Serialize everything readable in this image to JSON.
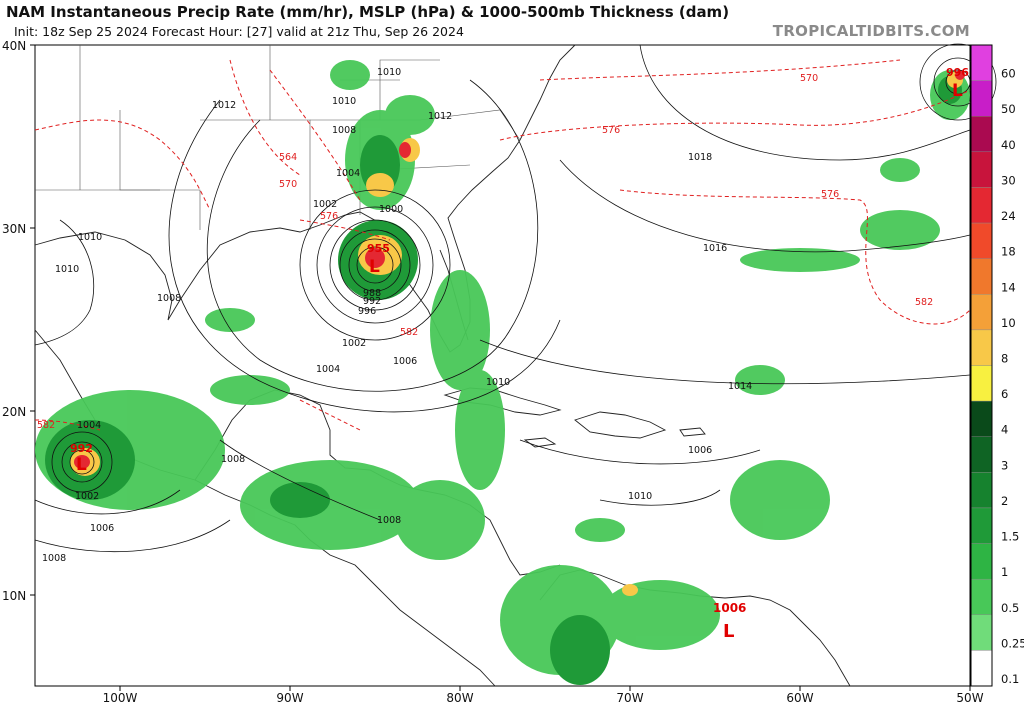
{
  "header": {
    "title": "NAM Instantaneous Precip Rate (mm/hr), MSLP (hPa) & 1000-500mb Thickness (dam)",
    "subtitle": "Init: 18z Sep 25 2024   Forecast Hour: [27]   valid at 21z Thu, Sep 26 2024",
    "brand": "TROPICALTIDBITS.COM"
  },
  "axes": {
    "lat_labels": [
      "40N",
      "30N",
      "20N",
      "10N"
    ],
    "lon_labels": [
      "100W",
      "90W",
      "80W",
      "70W",
      "60W",
      "50W"
    ]
  },
  "colorbar": {
    "levels": [
      {
        "label": "60",
        "color": "#e040e0"
      },
      {
        "label": "50",
        "color": "#c81ec8"
      },
      {
        "label": "40",
        "color": "#aa0a50"
      },
      {
        "label": "30",
        "color": "#c8143c"
      },
      {
        "label": "24",
        "color": "#e42832"
      },
      {
        "label": "18",
        "color": "#f04a2a"
      },
      {
        "label": "14",
        "color": "#f0782c"
      },
      {
        "label": "10",
        "color": "#f4a038"
      },
      {
        "label": "8",
        "color": "#f8c848"
      },
      {
        "label": "6",
        "color": "#f8f040"
      },
      {
        "label": "4",
        "color": "#0a4a1a"
      },
      {
        "label": "3",
        "color": "#0f6424"
      },
      {
        "label": "2",
        "color": "#16822e"
      },
      {
        "label": "1.5",
        "color": "#1f9a38"
      },
      {
        "label": "1",
        "color": "#2eb444"
      },
      {
        "label": "0.5",
        "color": "#48c858"
      },
      {
        "label": "0.25",
        "color": "#70dc7a"
      },
      {
        "label": "0.1",
        "color": "#ffffff"
      }
    ]
  },
  "isobars": [
    "1010",
    "1008",
    "1012",
    "1004",
    "1002",
    "1000",
    "988",
    "992",
    "996",
    "1002",
    "1004",
    "1006",
    "1010",
    "1014",
    "1016",
    "1018",
    "1010",
    "1012",
    "1010",
    "1008",
    "1008",
    "1006",
    "1002",
    "1004",
    "1010",
    "1008",
    "1010",
    "1008",
    "1006"
  ],
  "thickness": [
    "564",
    "570",
    "576",
    "570",
    "576",
    "576",
    "582",
    "582",
    "582"
  ],
  "lows": [
    {
      "symbol": "L",
      "pressure": "955"
    },
    {
      "symbol": "L",
      "pressure": "992"
    },
    {
      "symbol": "L",
      "pressure": "1006"
    },
    {
      "symbol": "L",
      "pressure": "996"
    }
  ]
}
